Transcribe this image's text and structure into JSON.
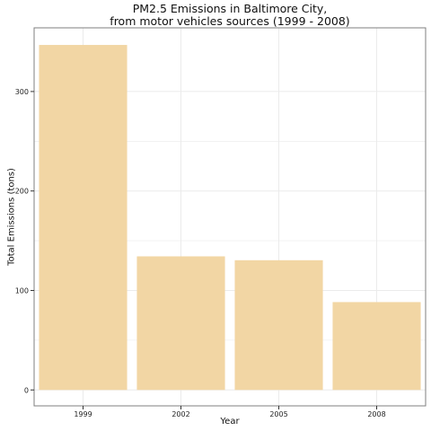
{
  "chart_data": {
    "type": "bar",
    "title_line1": "PM2.5 Emissions in Baltimore City,",
    "title_line2": "from motor vehicles sources (1999 - 2008)",
    "xlabel": "Year",
    "ylabel": "Total Emissions (tons)",
    "categories": [
      "1999",
      "2002",
      "2005",
      "2008"
    ],
    "values": [
      346.8,
      134.3,
      130.4,
      88.3
    ],
    "yticks": [
      0,
      100,
      200,
      300
    ],
    "ylim": [
      -16,
      364
    ],
    "grid": true,
    "bar_color": "#F2D6A4",
    "grid_color": "#EBEBEB",
    "panel_border_color": "#7F7F7F"
  }
}
